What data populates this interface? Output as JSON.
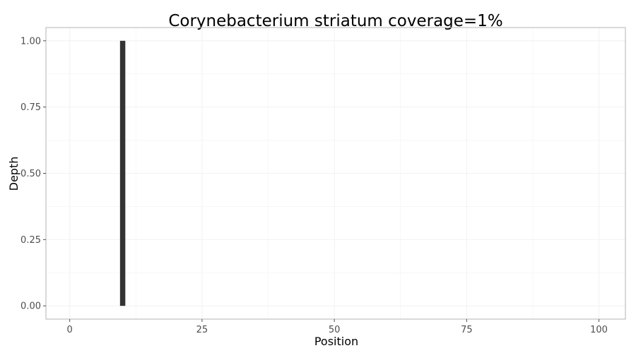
{
  "chart_data": {
    "type": "bar",
    "title": "Corynebacterium striatum coverage=1%",
    "xlabel": "Position",
    "ylabel": "Depth",
    "xlim": [
      -4.5,
      105
    ],
    "ylim": [
      -0.05,
      1.05
    ],
    "x_ticks": [
      0,
      25,
      50,
      75,
      100
    ],
    "y_ticks": [
      0.0,
      0.25,
      0.5,
      0.75,
      1.0
    ],
    "x_tick_labels": [
      "0",
      "25",
      "50",
      "75",
      "100"
    ],
    "y_tick_labels": [
      "0.00",
      "0.25",
      "0.50",
      "0.75",
      "1.00"
    ],
    "bars": [
      {
        "x": 10,
        "y": 1.0
      }
    ],
    "bar_width": 1,
    "grid": true,
    "colors": {
      "bar": "#333333",
      "grid": "#f2f2f2",
      "panel_border": "#b3b3b3",
      "tick": "#4d4d4d"
    }
  }
}
